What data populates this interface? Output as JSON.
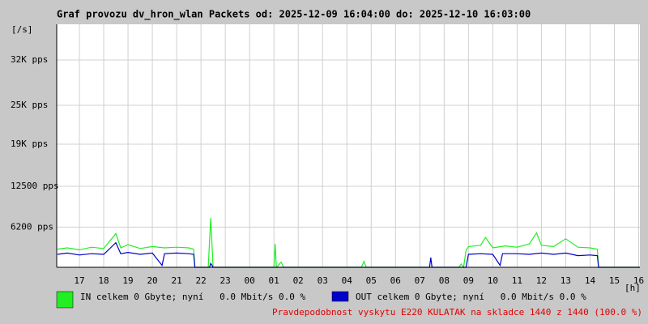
{
  "chart_data": {
    "type": "line",
    "title": "Graf provozu dv_hron_wlan Packets od: 2025-12-09 16:04:00 do: 2025-12-10 16:03:00",
    "y_label": "[/s]",
    "x_label": "[h]",
    "xlim": [
      16.067,
      40.05
    ],
    "ylim": [
      0,
      37500
    ],
    "grid": true,
    "xticks": [
      {
        "value": 17,
        "label": "17"
      },
      {
        "value": 18,
        "label": "18"
      },
      {
        "value": 19,
        "label": "19"
      },
      {
        "value": 20,
        "label": "20"
      },
      {
        "value": 21,
        "label": "21"
      },
      {
        "value": 22,
        "label": "22"
      },
      {
        "value": 23,
        "label": "23"
      },
      {
        "value": 24,
        "label": "00"
      },
      {
        "value": 25,
        "label": "01"
      },
      {
        "value": 26,
        "label": "02"
      },
      {
        "value": 27,
        "label": "03"
      },
      {
        "value": 28,
        "label": "04"
      },
      {
        "value": 29,
        "label": "05"
      },
      {
        "value": 30,
        "label": "06"
      },
      {
        "value": 31,
        "label": "07"
      },
      {
        "value": 32,
        "label": "08"
      },
      {
        "value": 33,
        "label": "09"
      },
      {
        "value": 34,
        "label": "10"
      },
      {
        "value": 35,
        "label": "11"
      },
      {
        "value": 36,
        "label": "12"
      },
      {
        "value": 37,
        "label": "13"
      },
      {
        "value": 38,
        "label": "14"
      },
      {
        "value": 39,
        "label": "15"
      },
      {
        "value": 40,
        "label": "16"
      }
    ],
    "yticks": [
      {
        "value": 6200,
        "label": "6200 pps"
      },
      {
        "value": 12500,
        "label": "12500 pps"
      },
      {
        "value": 19000,
        "label": "19K pps"
      },
      {
        "value": 25000,
        "label": "25K pps"
      },
      {
        "value": 32000,
        "label": "32K pps"
      }
    ],
    "series": [
      {
        "name": "IN celkem 0 Gbyte; nyní   0.0 Mbit/s 0.0 %",
        "color": "#22ee22",
        "x": [
          16.1,
          16.5,
          17,
          17.5,
          18,
          18.5,
          18.7,
          19,
          19.5,
          20,
          20.5,
          21,
          21.5,
          21.7,
          21.75,
          22.3,
          22.4,
          22.5,
          25,
          25.05,
          25.1,
          25.3,
          25.4,
          28.6,
          28.7,
          28.8,
          32.6,
          32.7,
          32.8,
          32.9,
          33,
          33.5,
          33.7,
          34,
          34.5,
          35,
          35.5,
          35.8,
          36,
          36.5,
          37,
          37.5,
          38,
          38.3,
          38.35,
          40.05
        ],
        "values": [
          2800,
          3000,
          2700,
          3100,
          2900,
          5200,
          3000,
          3500,
          2900,
          3200,
          3000,
          3100,
          3000,
          2800,
          0,
          0,
          7600,
          0,
          0,
          3600,
          0,
          800,
          0,
          0,
          900,
          0,
          0,
          500,
          0,
          2600,
          3200,
          3400,
          4600,
          3000,
          3300,
          3100,
          3600,
          5300,
          3400,
          3200,
          4400,
          3100,
          3000,
          2800,
          0,
          0
        ]
      },
      {
        "name": "OUT celkem 0 Gbyte; nyní   0.0 Mbit/s 0.0 %",
        "color": "#0000cc",
        "x": [
          16.1,
          16.5,
          17,
          17.5,
          18,
          18.5,
          18.7,
          19,
          19.5,
          20,
          20.4,
          20.5,
          21,
          21.5,
          21.7,
          21.75,
          22.35,
          22.4,
          22.5,
          31.4,
          31.45,
          31.5,
          32.9,
          33,
          33.5,
          34,
          34.3,
          34.4,
          35,
          35.5,
          36,
          36.5,
          37,
          37.5,
          38,
          38.3,
          38.35,
          40.05
        ],
        "values": [
          2000,
          2200,
          1900,
          2100,
          2000,
          3800,
          2100,
          2300,
          2000,
          2200,
          300,
          2100,
          2200,
          2100,
          2000,
          0,
          0,
          600,
          0,
          0,
          1500,
          0,
          0,
          2000,
          2100,
          2000,
          300,
          2100,
          2100,
          2000,
          2200,
          2000,
          2200,
          1800,
          1900,
          1800,
          0,
          0
        ]
      }
    ],
    "footnote": "Pravdepodobnost vyskytu E220 KULATAK na skladce 1440 z 1440 (100.0 %)"
  }
}
